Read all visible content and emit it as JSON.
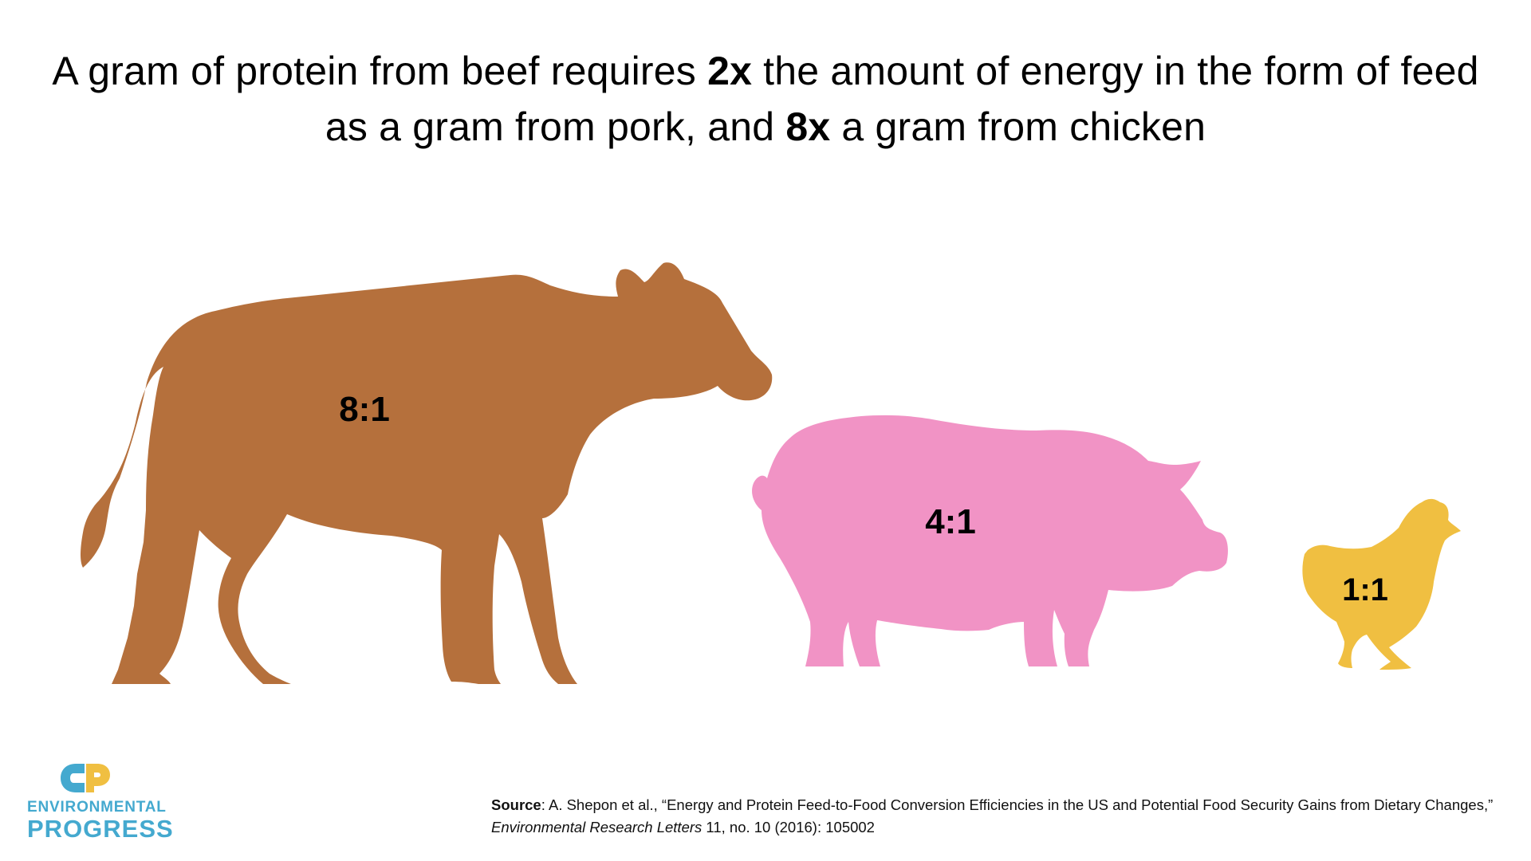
{
  "headline": {
    "part1": "A gram of protein from beef requires ",
    "emph1": "2x",
    "part2": " the amount of energy in the form of feed as a gram from pork, and ",
    "emph2": "8x",
    "part3": " a gram from chicken"
  },
  "animals": [
    {
      "animal": "cow-icon",
      "ratio": "8:1",
      "color": "#b5703c"
    },
    {
      "animal": "pig-icon",
      "ratio": "4:1",
      "color": "#f193c5"
    },
    {
      "animal": "chicken-icon",
      "ratio": "1:1",
      "color": "#f0bf41"
    }
  ],
  "logo": {
    "line1": "ENVIRONMENTAL",
    "line2": "PROGRESS",
    "color": "#44a9cf",
    "accent": "#f0bf41"
  },
  "source": {
    "label": "Source",
    "text_before": ": A. Shepon et al., “Energy and Protein Feed-to-Food Conversion Efficiencies in the US and Potential Food Security Gains from Dietary Changes,” ",
    "journal": "Environmental Research Letters",
    "text_after": " 11, no. 10 (2016): 105002"
  }
}
